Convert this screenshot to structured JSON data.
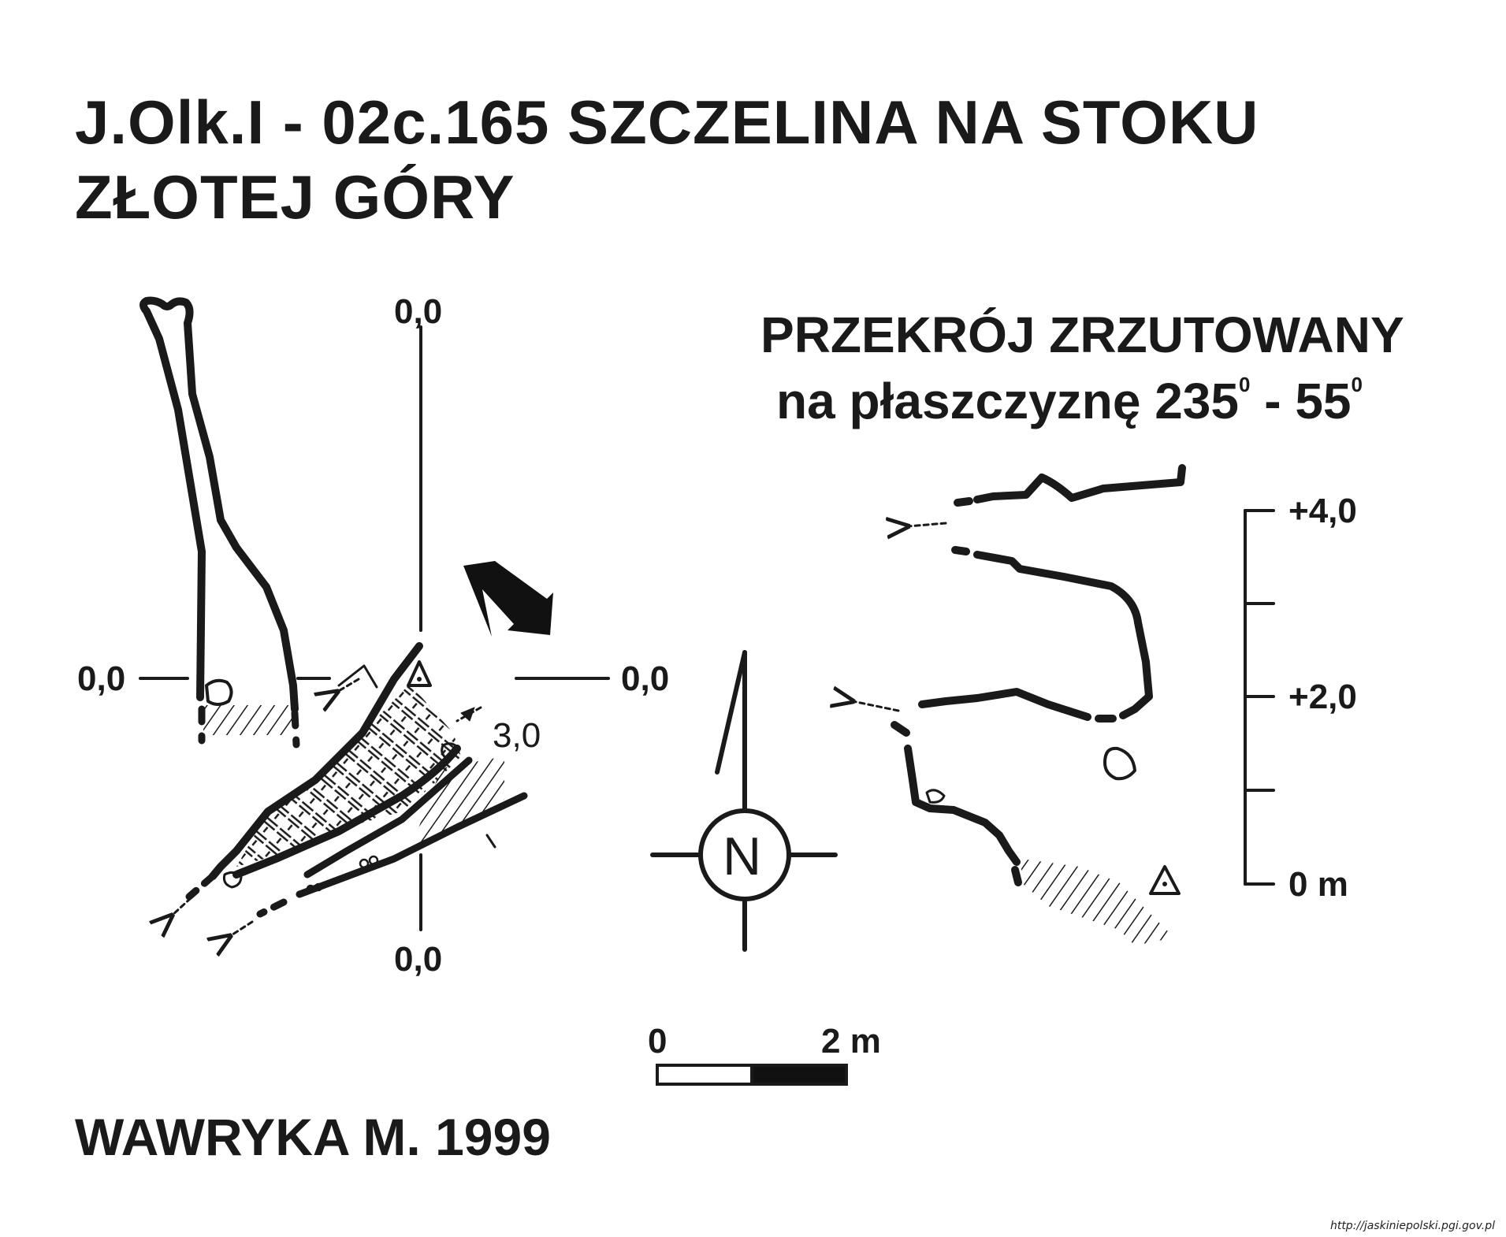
{
  "title": {
    "line1": "J.Olk.I - 02c.165  SZCZELINA NA STOKU",
    "line2": "ZŁOTEJ GÓRY"
  },
  "plan": {
    "axis_top": "0,0",
    "axis_left": "0,0",
    "axis_right": "0,0",
    "axis_bottom": "0,0",
    "depth_mark": "3,0"
  },
  "compass": {
    "north_letter": "N"
  },
  "scale_bar": {
    "start": "0",
    "end": "2 m"
  },
  "section": {
    "heading": "PRZEKRÓJ ZRZUTOWANY",
    "subheading_text": "na płaszczyznę 235",
    "degree_1": "0",
    "subheading_mid": " - 55",
    "degree_2": "0",
    "scale_labels": [
      "+4,0",
      "+2,0",
      "0 m"
    ]
  },
  "author": "WAWRYKA M. 1999",
  "credit": "http://jaskiniepolski.pgi.gov.pl"
}
